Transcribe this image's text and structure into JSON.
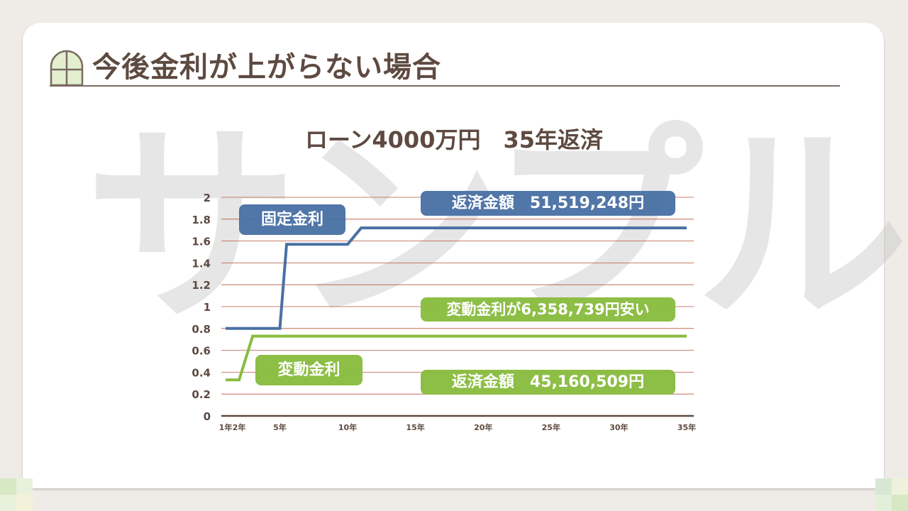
{
  "page": {
    "title": "今後金利が上がらない場合"
  },
  "watermark": "サンプル",
  "chart_data": {
    "type": "line",
    "title": "ローン4000万円　35年返済",
    "xlabel": "",
    "ylabel": "",
    "x_ticks": [
      "1年",
      "2年",
      "5年",
      "10年",
      "15年",
      "20年",
      "25年",
      "30年",
      "35年"
    ],
    "x_tick_values": [
      1,
      2,
      5,
      10,
      15,
      20,
      25,
      30,
      35
    ],
    "xlim": [
      1,
      35
    ],
    "y_ticks": [
      "0",
      "0.2",
      "0.4",
      "0.6",
      "0.8",
      "1",
      "1.2",
      "1.4",
      "1.6",
      "1.8",
      "2"
    ],
    "ylim": [
      0,
      2
    ],
    "grid": true,
    "series": [
      {
        "name": "固定金利",
        "color": "#4a70a4",
        "points": [
          [
            1,
            0.8
          ],
          [
            5,
            0.8
          ],
          [
            5.5,
            1.57
          ],
          [
            10,
            1.57
          ],
          [
            11,
            1.72
          ],
          [
            35,
            1.72
          ]
        ]
      },
      {
        "name": "変動金利",
        "color": "#89bc40",
        "points": [
          [
            1,
            0.33
          ],
          [
            2,
            0.33
          ],
          [
            3,
            0.73
          ],
          [
            35,
            0.73
          ]
        ]
      }
    ],
    "annotations": {
      "fixed_label": "固定金利",
      "fixed_total": "返済金額　51,519,248円",
      "variable_label": "変動金利",
      "variable_total": "返済金額　45,160,509円",
      "difference": "変動金利が6,358,739円安い"
    }
  }
}
